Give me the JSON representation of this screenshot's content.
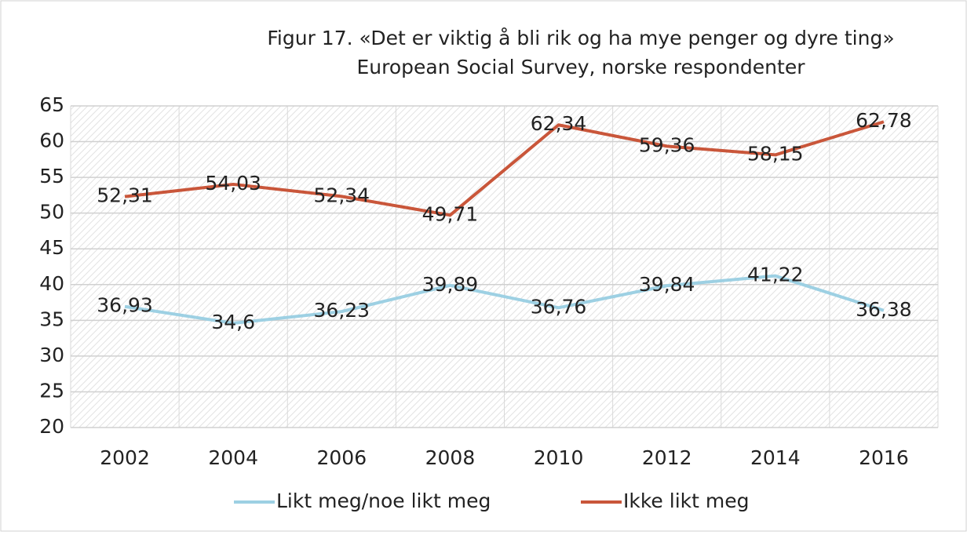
{
  "chart_data": {
    "type": "line",
    "title": "Figur 17. «Det er viktig å bli rik og ha mye penger og dyre ting»",
    "subtitle": "European Social Survey, norske respondenter",
    "categories": [
      "2002",
      "2004",
      "2006",
      "2008",
      "2010",
      "2012",
      "2014",
      "2016"
    ],
    "series": [
      {
        "name": "Likt meg/noe likt meg",
        "color": "#9dd0e3",
        "values": [
          36.93,
          34.6,
          36.23,
          39.89,
          36.76,
          39.84,
          41.22,
          36.38
        ],
        "value_labels": [
          "36,93",
          "34,6",
          "36,23",
          "39,89",
          "36,76",
          "39,84",
          "41,22",
          "36,38"
        ]
      },
      {
        "name": "Ikke likt meg",
        "color": "#c9563a",
        "values": [
          52.31,
          54.03,
          52.34,
          49.71,
          62.34,
          59.36,
          58.15,
          62.78
        ],
        "value_labels": [
          "52,31",
          "54,03",
          "52,34",
          "49,71",
          "62,34",
          "59,36",
          "58,15",
          "62,78"
        ]
      }
    ],
    "ylim": [
      20,
      65
    ],
    "yticks": [
      20,
      25,
      30,
      35,
      40,
      45,
      50,
      55,
      60,
      65
    ],
    "grid": true,
    "legend": "bottom"
  }
}
